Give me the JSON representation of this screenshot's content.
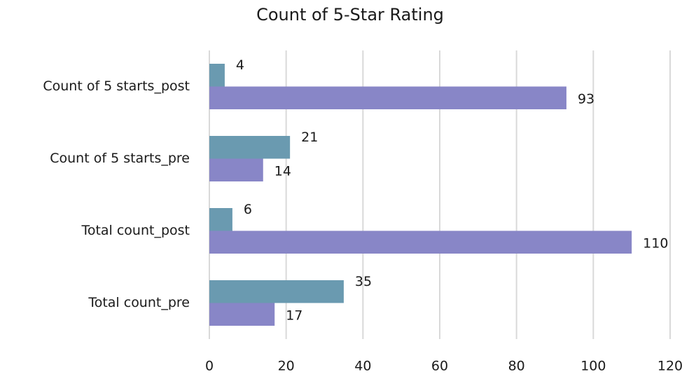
{
  "chart_data": {
    "type": "barh",
    "title": "Count of 5-Star Rating",
    "categories": [
      "Count of 5 starts_post",
      "Count of 5 starts_pre",
      "Total count_post",
      "Total count_pre"
    ],
    "series": [
      {
        "color": "#6a9ab0",
        "values": [
          4,
          21,
          6,
          35
        ]
      },
      {
        "color": "#8886c7",
        "values": [
          93,
          14,
          110,
          17
        ]
      }
    ],
    "xlim": [
      0,
      120
    ],
    "xticks": [
      0,
      20,
      40,
      60,
      80,
      100,
      120
    ],
    "grid": true,
    "data_labels": true
  }
}
